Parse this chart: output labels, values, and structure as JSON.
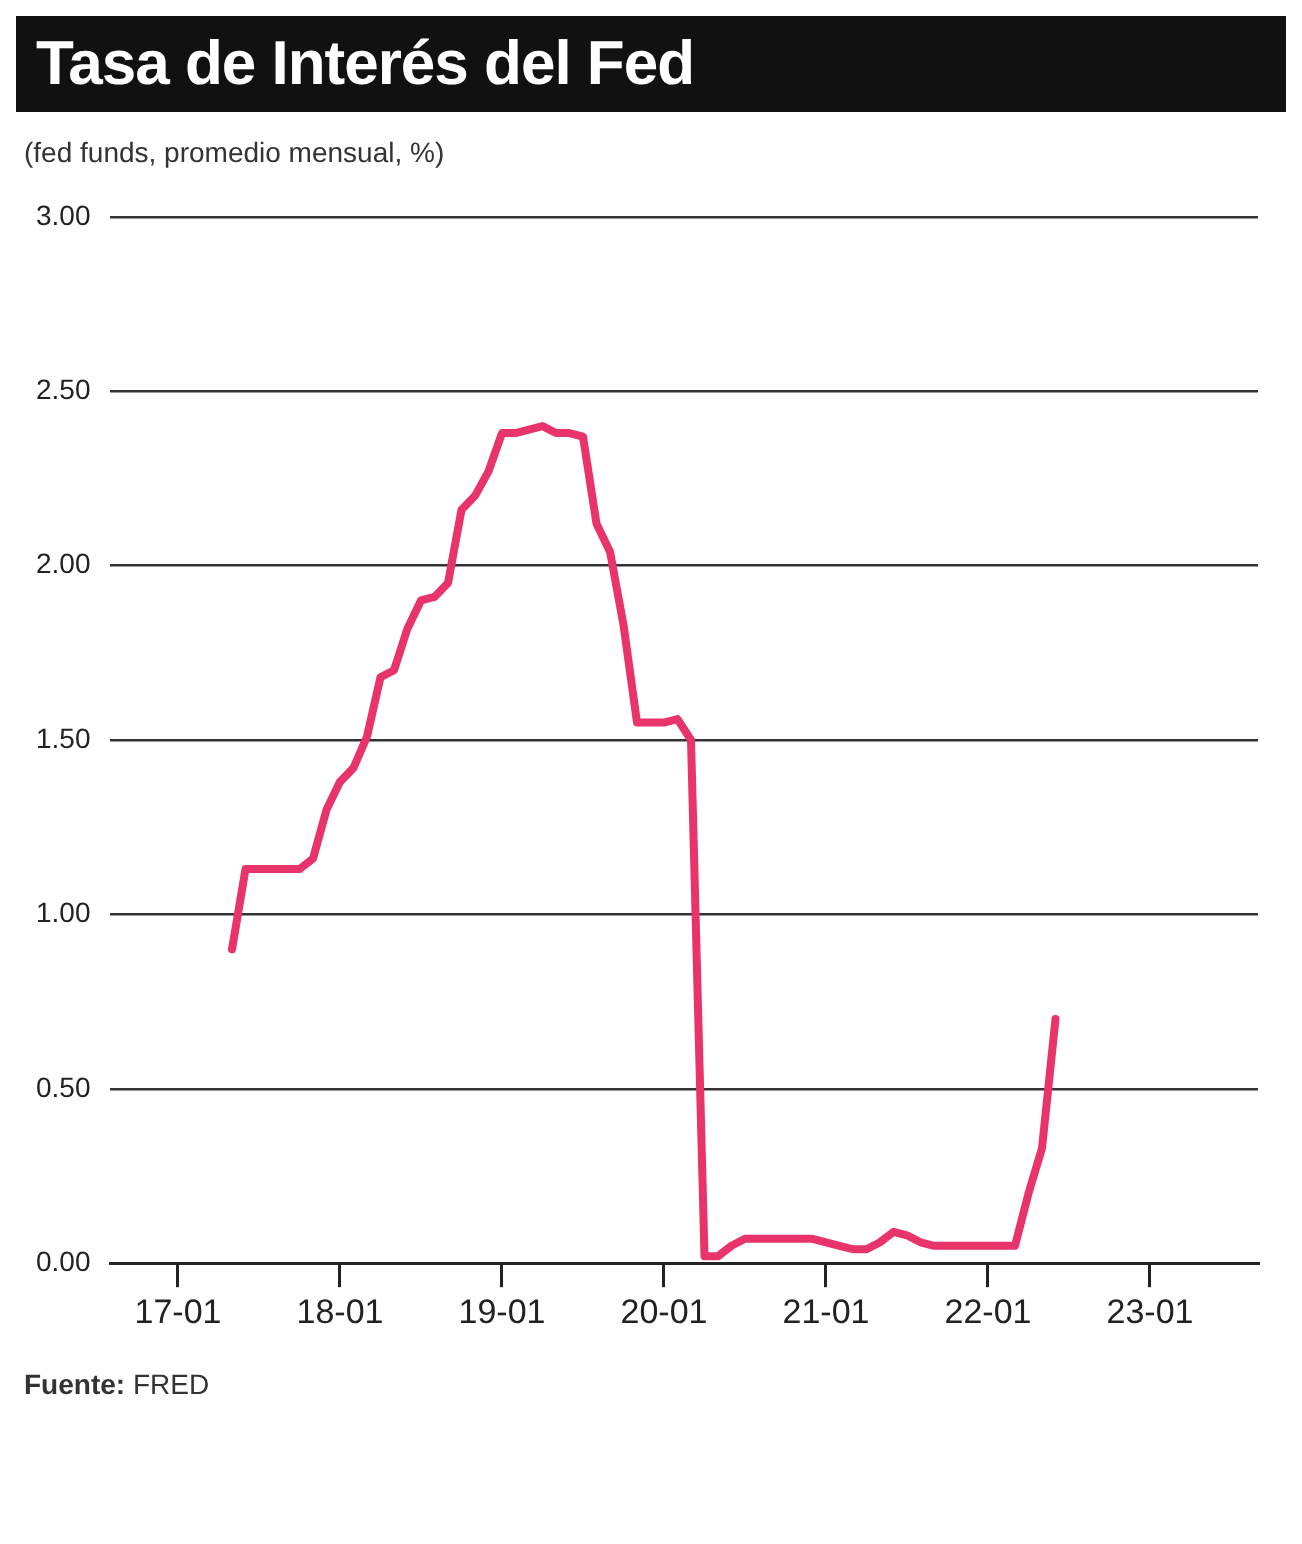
{
  "chart_data": {
    "type": "line",
    "title": "Tasa de Interés del Fed",
    "subtitle": "(fed funds, promedio mensual, %)",
    "annotations": [
      "Fuente: FRED"
    ],
    "categories": [
      null,
      null,
      null,
      null,
      null,
      "17-01",
      null,
      null,
      null,
      null,
      null,
      null,
      null,
      null,
      null,
      null,
      null,
      "18-01",
      null,
      null,
      null,
      null,
      null,
      null,
      null,
      null,
      null,
      null,
      null,
      "19-01",
      null,
      null,
      null,
      null,
      null,
      null,
      null,
      null,
      null,
      null,
      null,
      "20-01",
      null,
      null,
      null,
      null,
      null,
      null,
      null,
      null,
      null,
      null,
      null,
      "21-01",
      null,
      null,
      null,
      null,
      null,
      null,
      null,
      null,
      null,
      null,
      null,
      "22-01",
      null,
      null,
      null,
      null,
      null,
      null,
      null,
      null,
      null,
      null,
      null,
      "23-01",
      null,
      null,
      null,
      null,
      null,
      null,
      null,
      null
    ],
    "series": [
      {
        "color": "#e8336b",
        "values": [
          null,
          null,
          null,
          null,
          null,
          null,
          null,
          null,
          null,
          0.9,
          1.13,
          1.13,
          1.13,
          1.13,
          1.13,
          1.16,
          1.3,
          1.38,
          1.42,
          1.51,
          1.68,
          1.7,
          1.82,
          1.9,
          1.91,
          1.95,
          2.16,
          2.2,
          2.27,
          2.38,
          2.38,
          2.39,
          2.4,
          2.38,
          2.38,
          2.37,
          2.12,
          2.04,
          1.83,
          1.55,
          1.55,
          1.55,
          1.56,
          1.5,
          0.02,
          0.02,
          0.05,
          0.07,
          0.07,
          0.07,
          0.07,
          0.07,
          0.07,
          0.06,
          0.05,
          0.04,
          0.04,
          0.06,
          0.09,
          0.08,
          0.06,
          0.05,
          0.05,
          0.05,
          0.05,
          0.05,
          0.05,
          0.05,
          0.2,
          0.33,
          0.7,
          null,
          null,
          null,
          null,
          null,
          null,
          null,
          null,
          null,
          null,
          null,
          null,
          null,
          null,
          null
        ]
      }
    ],
    "ylim": [
      0,
      3
    ],
    "yticks": [
      {
        "value": 0,
        "label": "0.00"
      },
      {
        "value": 0.5,
        "label": "0.50"
      },
      {
        "value": 1,
        "label": "1.00"
      },
      {
        "value": 1.5,
        "label": "1.50"
      },
      {
        "value": 2,
        "label": "2.00"
      },
      {
        "value": 2.5,
        "label": "2.50"
      },
      {
        "value": 3,
        "label": "3.00"
      }
    ],
    "grid": "y",
    "legend": false,
    "marker": "none",
    "line_style": "solid"
  }
}
